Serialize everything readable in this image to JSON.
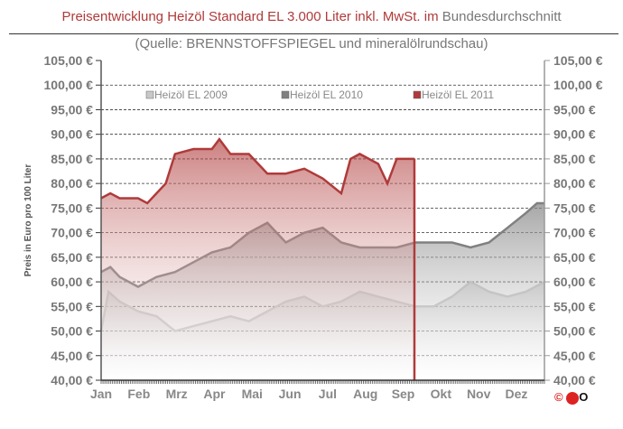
{
  "title_main": "Preisentwicklung Heizöl Standard EL 3.000 Liter inkl. MwSt. im",
  "title_rest": "Bundesdurchschnitt",
  "subtitle": "(Quelle: BRENNSTOFFSPIEGEL  und mineralölrundschau)",
  "logo": "©ECO",
  "chart_data": {
    "type": "area",
    "title": "Preisentwicklung Heizöl Standard EL 3.000 Liter inkl. MwSt. im Bundesdurchschnitt",
    "ylabel": "Preis in Euro pro 100 Liter",
    "ylim": [
      40,
      105
    ],
    "yticks": [
      "40,00 €",
      "45,00 €",
      "50,00 €",
      "55,00 €",
      "60,00 €",
      "65,00 €",
      "70,00 €",
      "75,00 €",
      "80,00 €",
      "85,00 €",
      "90,00 €",
      "95,00 €",
      "100,00 €",
      "105,00 €"
    ],
    "categories": [
      "Jan",
      "Feb",
      "Mrz",
      "Apr",
      "Mai",
      "Jun",
      "Jul",
      "Aug",
      "Sep",
      "Okt",
      "Nov",
      "Dez"
    ],
    "legend_position": "top",
    "grid": "dashed horizontal",
    "series": [
      {
        "name": "Heizöl EL 2009",
        "color": "#c8c8c8",
        "x": [
          0,
          0.2,
          0.5,
          1,
          1.5,
          2,
          2.5,
          3,
          3.5,
          4,
          4.5,
          5,
          5.5,
          6,
          6.5,
          7,
          7.5,
          8,
          8.5,
          9,
          9.5,
          10,
          10.5,
          11,
          11.5,
          12
        ],
        "values": [
          50,
          58,
          56,
          54,
          53,
          50,
          51,
          52,
          53,
          52,
          54,
          56,
          57,
          55,
          56,
          58,
          57,
          56,
          55,
          55,
          57,
          60,
          58,
          57,
          58,
          60
        ]
      },
      {
        "name": "Heizöl EL 2010",
        "color": "#808080",
        "x": [
          0,
          0.25,
          0.5,
          1,
          1.5,
          2,
          2.5,
          3,
          3.5,
          4,
          4.5,
          5,
          5.5,
          6,
          6.5,
          7,
          7.5,
          8,
          8.5,
          9,
          9.5,
          10,
          10.5,
          11,
          11.5,
          11.8,
          12
        ],
        "values": [
          62,
          63,
          61,
          59,
          61,
          62,
          64,
          66,
          67,
          70,
          72,
          68,
          70,
          71,
          68,
          67,
          67,
          67,
          68,
          68,
          68,
          67,
          68,
          71,
          74,
          76,
          76
        ]
      },
      {
        "name": "Heizöl EL 2011",
        "color": "#b03a3a",
        "x": [
          0,
          0.25,
          0.5,
          1,
          1.25,
          1.75,
          2,
          2.5,
          3,
          3.2,
          3.5,
          4,
          4.5,
          5,
          5.5,
          6,
          6.5,
          6.75,
          7,
          7.5,
          7.75,
          8,
          8.25,
          8.48
        ],
        "values": [
          77,
          78,
          77,
          77,
          76,
          80,
          86,
          87,
          87,
          89,
          86,
          86,
          82,
          82,
          83,
          81,
          78,
          85,
          86,
          84,
          80,
          85,
          85,
          85
        ]
      }
    ]
  }
}
